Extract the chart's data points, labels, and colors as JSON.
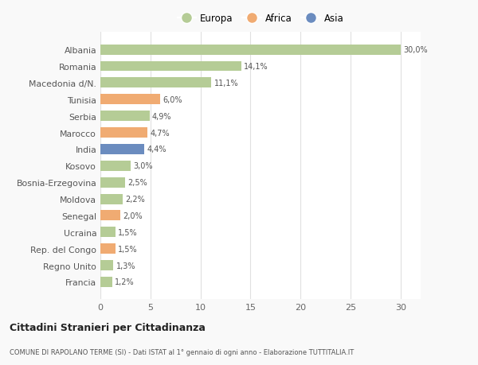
{
  "countries": [
    "Albania",
    "Romania",
    "Macedonia d/N.",
    "Tunisia",
    "Serbia",
    "Marocco",
    "India",
    "Kosovo",
    "Bosnia-Erzegovina",
    "Moldova",
    "Senegal",
    "Ucraina",
    "Rep. del Congo",
    "Regno Unito",
    "Francia"
  ],
  "values": [
    30.0,
    14.1,
    11.1,
    6.0,
    4.9,
    4.7,
    4.4,
    3.0,
    2.5,
    2.2,
    2.0,
    1.5,
    1.5,
    1.3,
    1.2
  ],
  "labels": [
    "30,0%",
    "14,1%",
    "11,1%",
    "6,0%",
    "4,9%",
    "4,7%",
    "4,4%",
    "3,0%",
    "2,5%",
    "2,2%",
    "2,0%",
    "1,5%",
    "1,5%",
    "1,3%",
    "1,2%"
  ],
  "continents": [
    "Europa",
    "Europa",
    "Europa",
    "Africa",
    "Europa",
    "Africa",
    "Asia",
    "Europa",
    "Europa",
    "Europa",
    "Africa",
    "Europa",
    "Africa",
    "Europa",
    "Europa"
  ],
  "continent_colors": {
    "Europa": "#b5cc96",
    "Africa": "#f0ab72",
    "Asia": "#6b8cbf"
  },
  "legend_labels": [
    "Europa",
    "Africa",
    "Asia"
  ],
  "legend_colors": [
    "#b5cc96",
    "#f0ab72",
    "#6b8cbf"
  ],
  "title1": "Cittadini Stranieri per Cittadinanza",
  "title2": "COMUNE DI RAPOLANO TERME (SI) - Dati ISTAT al 1° gennaio di ogni anno - Elaborazione TUTTITALIA.IT",
  "xlim": [
    0,
    32
  ],
  "xticks": [
    0,
    5,
    10,
    15,
    20,
    25,
    30
  ],
  "bg_color": "#f9f9f9",
  "plot_bg_color": "#ffffff",
  "grid_color": "#e0e0e0"
}
